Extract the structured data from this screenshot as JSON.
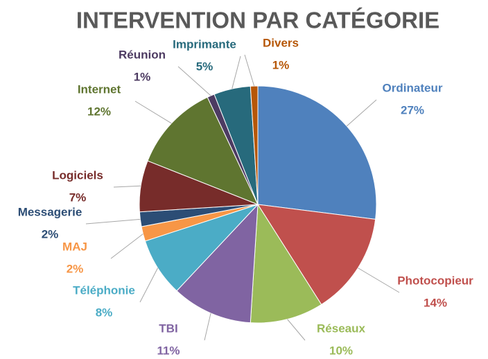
{
  "chart_data": {
    "type": "pie",
    "title": "INTERVENTION PAR CATÉGORIE",
    "categories": [
      "Ordinateur",
      "Photocopieur",
      "Réseaux",
      "TBI",
      "Téléphonie",
      "MAJ",
      "Messagerie",
      "Logiciels",
      "Internet",
      "Réunion",
      "Imprimante",
      "Divers"
    ],
    "values": [
      27,
      14,
      10,
      11,
      8,
      2,
      2,
      7,
      12,
      1,
      5,
      1
    ],
    "value_labels": [
      "27%",
      "14%",
      "10%",
      "11%",
      "8%",
      "2%",
      "2%",
      "7%",
      "12%",
      "1%",
      "5%",
      "1%"
    ],
    "colors": [
      "#4f81bd",
      "#c0504d",
      "#9bbb59",
      "#8064a2",
      "#4bacc6",
      "#f79646",
      "#2c4d75",
      "#772c2a",
      "#5f7530",
      "#4d3b62",
      "#276a7c",
      "#b65708"
    ]
  }
}
